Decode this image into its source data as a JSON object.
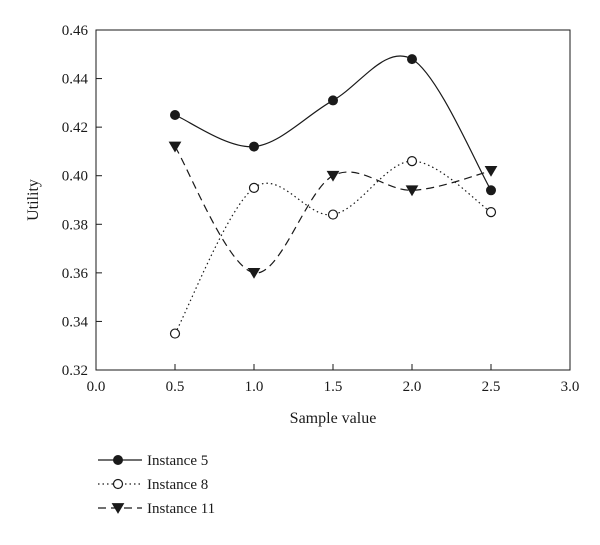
{
  "chart_data": {
    "type": "line",
    "xlabel": "Sample value",
    "ylabel": "Utility",
    "xlim": [
      0.0,
      3.0
    ],
    "ylim": [
      0.32,
      0.46
    ],
    "xticks": [
      "0.0",
      "0.5",
      "1.0",
      "1.5",
      "2.0",
      "2.5",
      "3.0"
    ],
    "yticks": [
      "0.32",
      "0.34",
      "0.36",
      "0.38",
      "0.40",
      "0.42",
      "0.44",
      "0.46"
    ],
    "grid": false,
    "legend_position": "bottom-left",
    "x": [
      0.5,
      1.0,
      1.5,
      2.0,
      2.5
    ],
    "series": [
      {
        "name": "Instance 5",
        "values": [
          0.425,
          0.412,
          0.431,
          0.448,
          0.394
        ],
        "marker": "circle-filled",
        "line_style": "solid",
        "color": "#1a1a1a"
      },
      {
        "name": "Instance 8",
        "values": [
          0.335,
          0.395,
          0.384,
          0.406,
          0.385
        ],
        "marker": "circle-open",
        "line_style": "dotted",
        "color": "#1a1a1a"
      },
      {
        "name": "Instance 11",
        "values": [
          0.412,
          0.36,
          0.4,
          0.394,
          0.402
        ],
        "marker": "triangle-down-filled",
        "line_style": "dashed",
        "color": "#1a1a1a"
      }
    ]
  }
}
